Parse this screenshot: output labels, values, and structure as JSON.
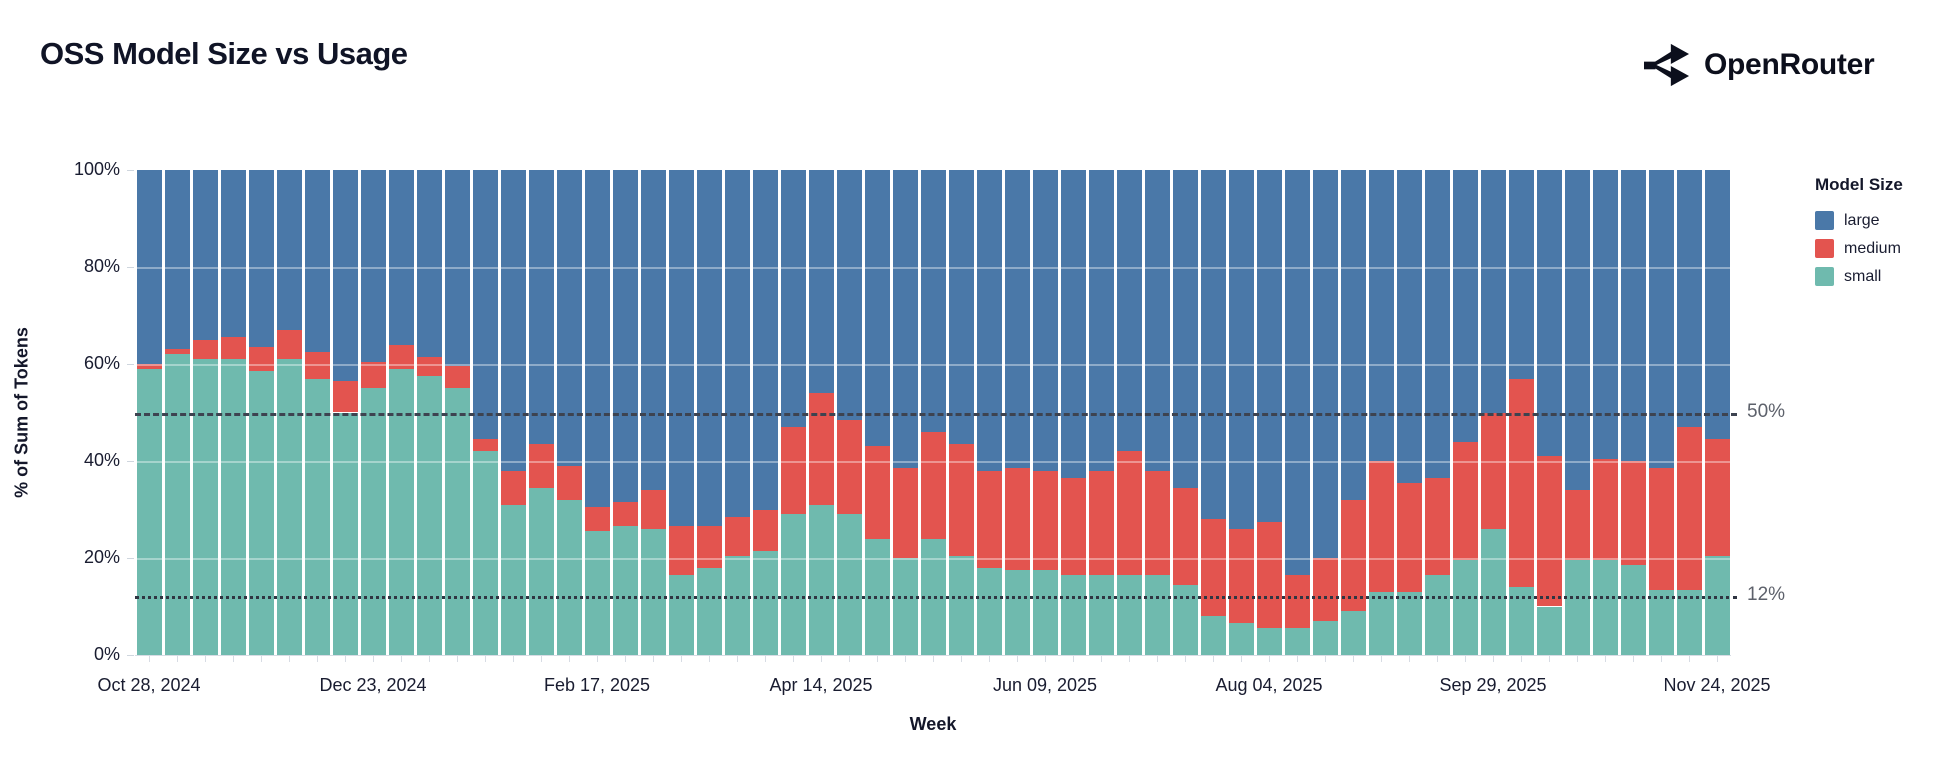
{
  "page": {
    "title": "OSS Model Size vs Usage"
  },
  "brand": {
    "name": "OpenRouter",
    "icon": "openrouter-split-arrows-icon"
  },
  "legend": {
    "title": "Model Size",
    "items": [
      {
        "label": "large",
        "color": "#4a78a8"
      },
      {
        "label": "medium",
        "color": "#e3544f"
      },
      {
        "label": "small",
        "color": "#6fbaae"
      }
    ]
  },
  "annotations": [
    {
      "label": "50%",
      "value": 50,
      "style": "dashed"
    },
    {
      "label": "12%",
      "value": 12,
      "style": "dotted"
    }
  ],
  "chart_data": {
    "type": "bar",
    "variant": "stacked-100-percent",
    "title": "OSS Model Size vs Usage",
    "xlabel": "Week",
    "ylabel": "% of Sum of Tokens",
    "ylim": [
      0,
      100
    ],
    "yticks": [
      0,
      20,
      40,
      60,
      80,
      100
    ],
    "ytick_suffix": "%",
    "grid": "horizontal every 20%",
    "legend_position": "right",
    "x_tick_label_every": 8,
    "shown_x_tick_labels": [
      "Oct 28, 2024",
      "Dec 23, 2024",
      "Feb 17, 2025",
      "Apr 14, 2025",
      "Jun 09, 2025",
      "Aug 04, 2025",
      "Sep 29, 2025",
      "Nov 24, 2025"
    ],
    "categories": [
      "Oct 28, 2024",
      "Nov 04, 2024",
      "Nov 11, 2024",
      "Nov 18, 2024",
      "Nov 25, 2024",
      "Dec 02, 2024",
      "Dec 09, 2024",
      "Dec 16, 2024",
      "Dec 23, 2024",
      "Dec 30, 2024",
      "Jan 06, 2025",
      "Jan 13, 2025",
      "Jan 20, 2025",
      "Jan 27, 2025",
      "Feb 03, 2025",
      "Feb 10, 2025",
      "Feb 17, 2025",
      "Feb 24, 2025",
      "Mar 03, 2025",
      "Mar 10, 2025",
      "Mar 17, 2025",
      "Mar 24, 2025",
      "Mar 31, 2025",
      "Apr 07, 2025",
      "Apr 14, 2025",
      "Apr 21, 2025",
      "Apr 28, 2025",
      "May 05, 2025",
      "May 12, 2025",
      "May 19, 2025",
      "May 26, 2025",
      "Jun 02, 2025",
      "Jun 09, 2025",
      "Jun 16, 2025",
      "Jun 23, 2025",
      "Jun 30, 2025",
      "Jul 07, 2025",
      "Jul 14, 2025",
      "Jul 21, 2025",
      "Jul 28, 2025",
      "Aug 04, 2025",
      "Aug 11, 2025",
      "Aug 18, 2025",
      "Aug 25, 2025",
      "Sep 01, 2025",
      "Sep 08, 2025",
      "Sep 15, 2025",
      "Sep 22, 2025",
      "Sep 29, 2025",
      "Oct 06, 2025",
      "Oct 13, 2025",
      "Oct 20, 2025",
      "Oct 27, 2025",
      "Nov 03, 2025",
      "Nov 10, 2025",
      "Nov 17, 2025",
      "Nov 24, 2025"
    ],
    "stack_bottom_to_top": [
      "small",
      "medium",
      "large"
    ],
    "series": [
      {
        "name": "large",
        "color": "#4a78a8",
        "values": [
          40,
          37,
          35,
          34.5,
          36.5,
          33,
          37.5,
          43.5,
          39.5,
          36,
          38.5,
          40.5,
          55.5,
          62,
          56.5,
          61,
          69.5,
          68.5,
          66,
          73.5,
          73.5,
          71.5,
          70,
          53,
          46,
          51.5,
          57,
          61.5,
          54,
          56.5,
          62,
          61.5,
          62,
          63.5,
          62,
          58,
          62,
          65.5,
          72,
          74,
          72.5,
          83.5,
          80,
          68,
          60,
          64.5,
          63.5,
          56,
          50,
          43,
          59,
          66,
          59.5,
          60,
          61.5,
          53,
          55.5
        ]
      },
      {
        "name": "medium",
        "color": "#e3544f",
        "values": [
          1,
          1,
          4,
          4.5,
          5,
          6,
          5.5,
          6.5,
          5.5,
          5,
          4,
          4.5,
          2.5,
          7,
          9,
          7,
          5,
          5,
          8,
          10,
          8.5,
          8,
          8.5,
          18,
          23,
          19.5,
          19,
          18.5,
          22,
          23,
          20,
          21,
          20.5,
          20,
          21.5,
          25.5,
          21.5,
          20,
          20,
          19.5,
          22,
          11,
          13,
          23,
          27,
          22.5,
          20,
          24.5,
          24,
          43,
          31,
          14.5,
          21,
          21.5,
          25,
          33.5,
          24
        ]
      },
      {
        "name": "small",
        "color": "#6fbaae",
        "values": [
          59,
          62,
          61,
          61,
          58.5,
          61,
          57,
          50,
          55,
          59,
          57.5,
          55,
          42,
          31,
          34.5,
          32,
          25.5,
          26.5,
          26,
          16.5,
          18,
          20.5,
          21.5,
          29,
          31,
          29,
          24,
          20,
          24,
          20.5,
          18,
          17.5,
          17.5,
          16.5,
          16.5,
          16.5,
          16.5,
          14.5,
          8,
          6.5,
          5.5,
          5.5,
          7,
          9,
          13,
          13,
          16.5,
          19.5,
          26,
          14,
          10,
          19.5,
          19.5,
          18.5,
          13.5,
          13.5,
          20.5
        ]
      }
    ],
    "reference_lines": [
      {
        "value": 50,
        "style": "dashed",
        "label": "50%"
      },
      {
        "value": 12,
        "style": "dotted",
        "label": "12%"
      }
    ]
  }
}
